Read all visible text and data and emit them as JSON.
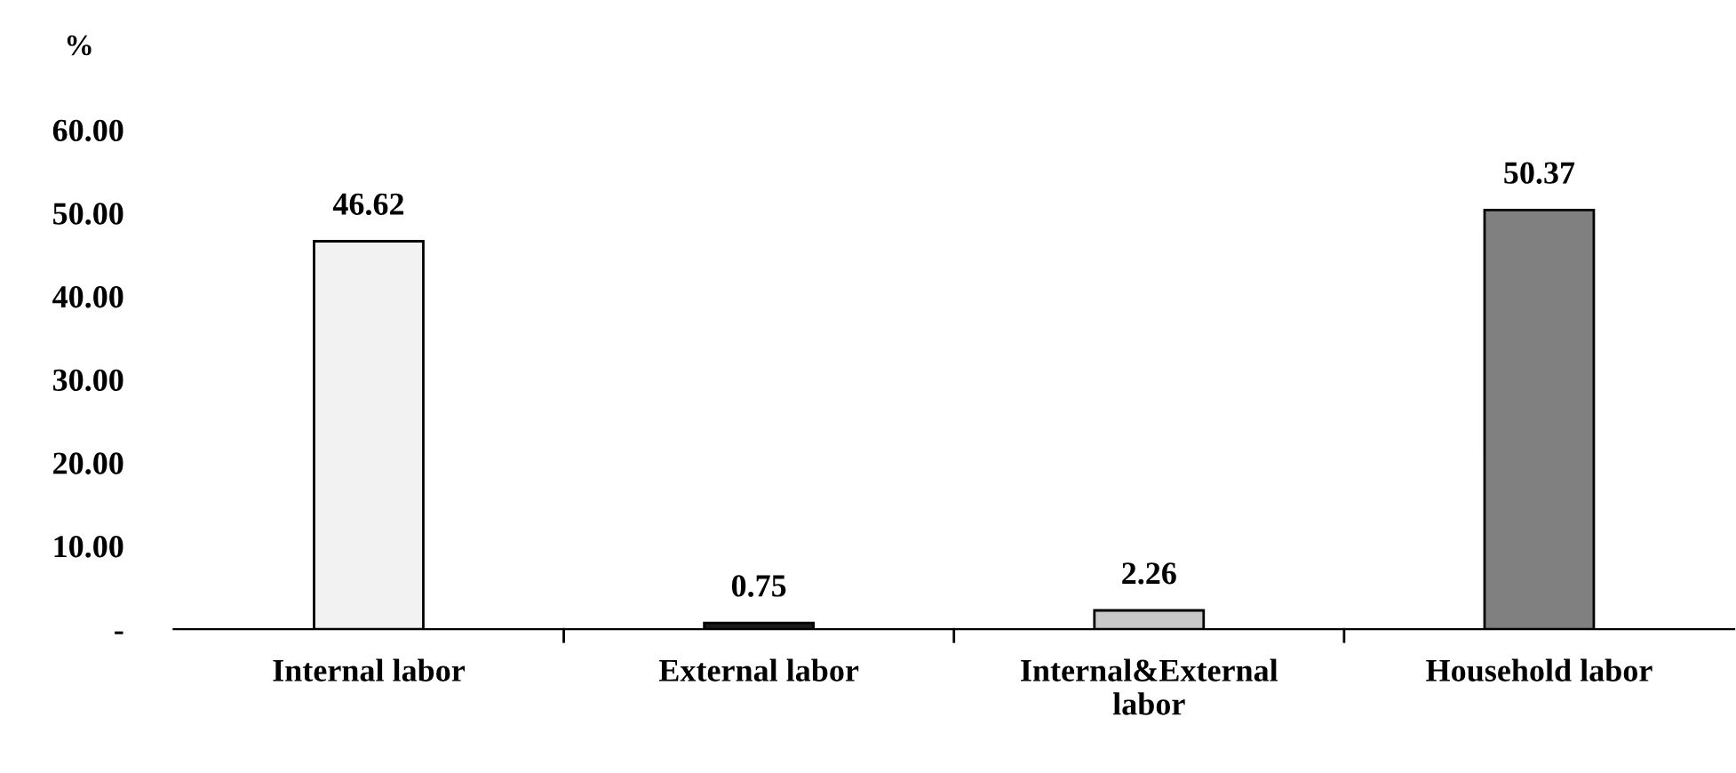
{
  "chart_data": {
    "type": "bar",
    "ylabel": "%",
    "categories": [
      "Internal labor",
      "External labor",
      "Internal&External\nlabor",
      "Household labor"
    ],
    "values": [
      46.62,
      0.75,
      2.26,
      50.37
    ],
    "colors": [
      "#f2f2f2",
      "#1a1a1a",
      "#c8c8c8",
      "#808080"
    ],
    "ylim": [
      0,
      60
    ],
    "yticks": [
      {
        "value": 0,
        "label": "-"
      },
      {
        "value": 10,
        "label": "10.00"
      },
      {
        "value": 20,
        "label": "20.00"
      },
      {
        "value": 30,
        "label": "30.00"
      },
      {
        "value": 40,
        "label": "40.00"
      },
      {
        "value": 50,
        "label": "50.00"
      },
      {
        "value": 60,
        "label": "60.00"
      }
    ],
    "data_labels": true,
    "grid": false,
    "legend": false
  }
}
